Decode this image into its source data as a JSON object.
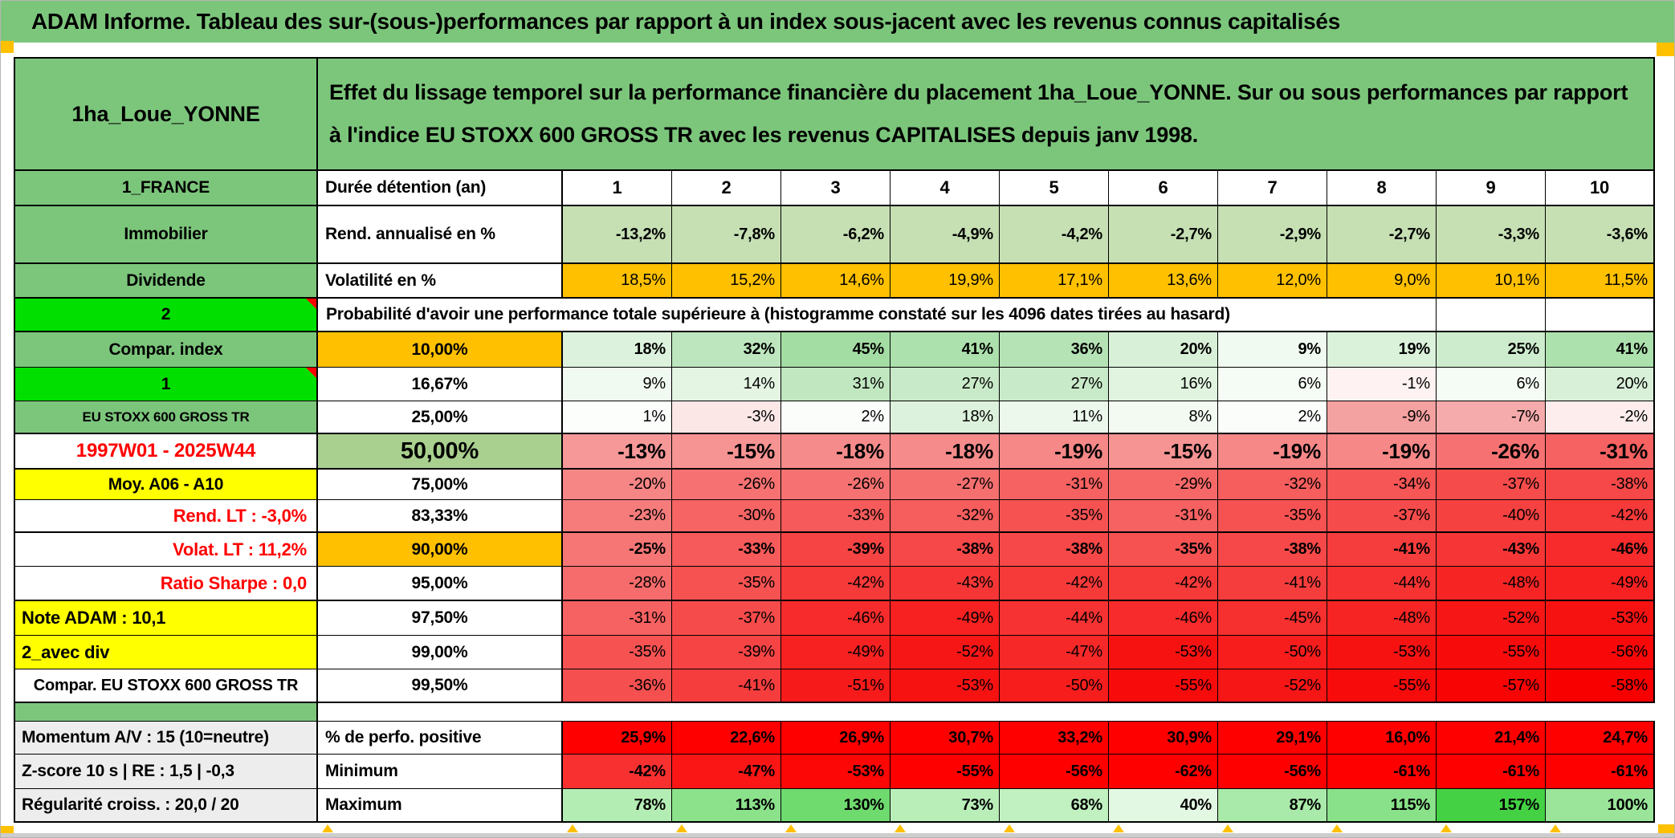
{
  "title": "ADAM Informe. Tableau des sur-(sous-)performances par rapport à un index sous-jacent avec les revenus connus capitalisés",
  "header": {
    "name": "1ha_Loue_YONNE",
    "description": "Effet du lissage temporel sur la performance financière du placement 1ha_Loue_YONNE. Sur ou sous performances par rapport à l'indice EU STOXX 600 GROSS TR avec les revenus CAPITALISES depuis janv 1998."
  },
  "colors": {
    "header_green": "#7cc67c",
    "bright_green": "#00df00",
    "pale_green": "#c6e0b4",
    "fifty_label_green": "#a9d08e",
    "orange": "#ffc000",
    "yellow": "#ffff00",
    "gray_label": "#ededed",
    "red_text": "#ff0000",
    "full_red": "#ff0000"
  },
  "matrix": {
    "rows": [
      {
        "id": "duration",
        "left": "1_FRANCE",
        "col2": "Durée détention (an)",
        "values": [
          "1",
          "2",
          "3",
          "4",
          "5",
          "6",
          "7",
          "8",
          "9",
          "10"
        ]
      },
      {
        "id": "annualized",
        "left": "Immobilier",
        "col2": "Rend. annualisé en %",
        "values": [
          "-13,2%",
          "-7,8%",
          "-6,2%",
          "-4,9%",
          "-4,2%",
          "-2,7%",
          "-2,9%",
          "-2,7%",
          "-3,3%",
          "-3,6%"
        ],
        "bg": "#c6e0b4"
      },
      {
        "id": "volatility",
        "left": "Dividende",
        "col2": "Volatilité en %",
        "values": [
          "18,5%",
          "15,2%",
          "14,6%",
          "19,9%",
          "17,1%",
          "13,6%",
          "12,0%",
          "9,0%",
          "10,1%",
          "11,5%"
        ],
        "bg": "#ffc000"
      },
      {
        "id": "prob",
        "left": "2",
        "col2": "Probabilité d'avoir une performance totale supérieure à (histogramme constaté sur les 4096 dates tirées au hasard)"
      },
      {
        "id": "p10",
        "left": "Compar. index",
        "col2": "10,00%",
        "values": [
          "18%",
          "32%",
          "45%",
          "41%",
          "36%",
          "20%",
          "9%",
          "19%",
          "25%",
          "41%"
        ],
        "bg": [
          "#dcf2dc",
          "#bee6be",
          "#a4dda4",
          "#ace0ac",
          "#b6e3b6",
          "#d8f0d8",
          "#f0faf0",
          "#daf1da",
          "#cdeccd",
          "#ace0ac"
        ]
      },
      {
        "id": "p1667",
        "left": "1",
        "col2": "16,67%",
        "values": [
          "9%",
          "14%",
          "31%",
          "27%",
          "27%",
          "16%",
          "6%",
          "-1%",
          "6%",
          "20%"
        ],
        "bg": [
          "#f0faf0",
          "#e4f5e4",
          "#c0e7c0",
          "#c9eac9",
          "#c9eac9",
          "#e0f4e0",
          "#f5fcf5",
          "#fef2f2",
          "#f5fcf5",
          "#d8f0d8"
        ]
      },
      {
        "id": "p25",
        "left": "EU STOXX 600 GROSS TR",
        "col2": "25,00%",
        "values": [
          "1%",
          "-3%",
          "2%",
          "18%",
          "11%",
          "8%",
          "2%",
          "-9%",
          "-7%",
          "-2%"
        ],
        "bg": [
          "#fcfefc",
          "#fce7e7",
          "#fbfdfb",
          "#dcf2dc",
          "#edf8ed",
          "#f2faf2",
          "#fbfdfb",
          "#f4a1a1",
          "#f5abab",
          "#fdeded"
        ]
      },
      {
        "id": "p50",
        "left": "1997W01 - 2025W44",
        "col2": "50,00%",
        "values": [
          "-13%",
          "-15%",
          "-18%",
          "-18%",
          "-19%",
          "-15%",
          "-19%",
          "-19%",
          "-26%",
          "-31%"
        ],
        "bg": [
          "#f69898",
          "#f69393",
          "#f68b8b",
          "#f68b8b",
          "#f68888",
          "#f69393",
          "#f68888",
          "#f68888",
          "#f67272",
          "#f66161"
        ]
      },
      {
        "id": "p75",
        "left": "Moy. A06 - A10",
        "col2": "75,00%",
        "values": [
          "-20%",
          "-26%",
          "-26%",
          "-27%",
          "-31%",
          "-29%",
          "-32%",
          "-34%",
          "-37%",
          "-38%"
        ],
        "bg": [
          "#f68585",
          "#f67272",
          "#f67272",
          "#f66f6f",
          "#f66161",
          "#f66868",
          "#f65d5d",
          "#f65656",
          "#f64b4b",
          "#f64848"
        ]
      },
      {
        "id": "p8333",
        "left": "Rend. LT :   -3,0%",
        "col2": "83,33%",
        "values": [
          "-23%",
          "-30%",
          "-33%",
          "-32%",
          "-35%",
          "-31%",
          "-35%",
          "-37%",
          "-40%",
          "-42%"
        ],
        "bg": [
          "#f67c7c",
          "#f66464",
          "#f65a5a",
          "#f65d5d",
          "#f65252",
          "#f66161",
          "#f65252",
          "#f64b4b",
          "#f64141",
          "#f63939"
        ]
      },
      {
        "id": "p90",
        "left": "Volat. LT :   11,2%",
        "col2": "90,00%",
        "values": [
          "-25%",
          "-33%",
          "-39%",
          "-38%",
          "-38%",
          "-35%",
          "-38%",
          "-41%",
          "-43%",
          "-46%"
        ],
        "bg": [
          "#f67676",
          "#f65a5a",
          "#f64444",
          "#f64848",
          "#f64848",
          "#f65252",
          "#f64848",
          "#f63d3d",
          "#f63636",
          "#f72b2b"
        ]
      },
      {
        "id": "p95",
        "left": "Ratio Sharpe :   0,0",
        "col2": "95,00%",
        "values": [
          "-28%",
          "-35%",
          "-42%",
          "-43%",
          "-42%",
          "-42%",
          "-41%",
          "-44%",
          "-48%",
          "-49%"
        ],
        "bg": [
          "#f66b6b",
          "#f65252",
          "#f63939",
          "#f63636",
          "#f63939",
          "#f63939",
          "#f63d3d",
          "#f63232",
          "#f72424",
          "#f72121"
        ]
      },
      {
        "id": "p975",
        "left": "Note ADAM : 10,1",
        "col2": "97,50%",
        "values": [
          "-31%",
          "-37%",
          "-46%",
          "-49%",
          "-44%",
          "-46%",
          "-45%",
          "-48%",
          "-52%",
          "-53%"
        ],
        "bg": [
          "#f66161",
          "#f64b4b",
          "#f72b2b",
          "#f72121",
          "#f63232",
          "#f72b2b",
          "#f62f2f",
          "#f72424",
          "#f71616",
          "#f71212"
        ]
      },
      {
        "id": "p99",
        "left": "2_avec div",
        "col2": "99,00%",
        "values": [
          "-35%",
          "-39%",
          "-49%",
          "-52%",
          "-47%",
          "-53%",
          "-50%",
          "-53%",
          "-55%",
          "-56%"
        ],
        "bg": [
          "#f65252",
          "#f64444",
          "#f72121",
          "#f71616",
          "#f72828",
          "#f71212",
          "#f71d1d",
          "#f71212",
          "#f80b0b",
          "#f80808"
        ]
      },
      {
        "id": "p995",
        "left": "Compar. EU STOXX 600 GROSS TR",
        "col2": "99,50%",
        "values": [
          "-36%",
          "-41%",
          "-51%",
          "-53%",
          "-50%",
          "-55%",
          "-52%",
          "-55%",
          "-57%",
          "-58%"
        ],
        "bg": [
          "#f64f4f",
          "#f63d3d",
          "#f71a1a",
          "#f71212",
          "#f71d1d",
          "#f80b0b",
          "#f71616",
          "#f80b0b",
          "#f80404",
          "#f90000"
        ]
      },
      {
        "id": "sep",
        "left": ""
      },
      {
        "id": "pos",
        "left": "Momentum A/V : 15 (10=neutre)",
        "col2": "% de perfo. positive",
        "values": [
          "25,9%",
          "22,6%",
          "26,9%",
          "30,7%",
          "33,2%",
          "30,9%",
          "29,1%",
          "16,0%",
          "21,4%",
          "24,7%"
        ],
        "bg": [
          "#ff0000",
          "#ff0000",
          "#ff0000",
          "#ff0000",
          "#ff0000",
          "#ff0000",
          "#ff0000",
          "#ff0000",
          "#ff0000",
          "#ff0000"
        ]
      },
      {
        "id": "min",
        "left": "Z-score 10 s | RE : 1,5 | -0,3",
        "col2": "Minimum",
        "values": [
          "-42%",
          "-47%",
          "-53%",
          "-55%",
          "-56%",
          "-62%",
          "-56%",
          "-61%",
          "-61%",
          "-61%"
        ],
        "bg": [
          "#f93030",
          "#fb1616",
          "#fd0606",
          "#ff0000",
          "#ff0000",
          "#ff0000",
          "#ff0000",
          "#ff0000",
          "#ff0000",
          "#ff0000"
        ]
      },
      {
        "id": "max",
        "left": "Régularité croiss. : 20,0 / 20",
        "col2": "Maximum",
        "values": [
          "78%",
          "113%",
          "130%",
          "73%",
          "68%",
          "40%",
          "87%",
          "115%",
          "157%",
          "100%"
        ],
        "bg": [
          "#b4edb4",
          "#8be28b",
          "#6fdb6f",
          "#b9eeb9",
          "#c1f0c1",
          "#e3f8e3",
          "#a9e9a9",
          "#89e189",
          "#44d244",
          "#9ae59a"
        ]
      }
    ]
  }
}
